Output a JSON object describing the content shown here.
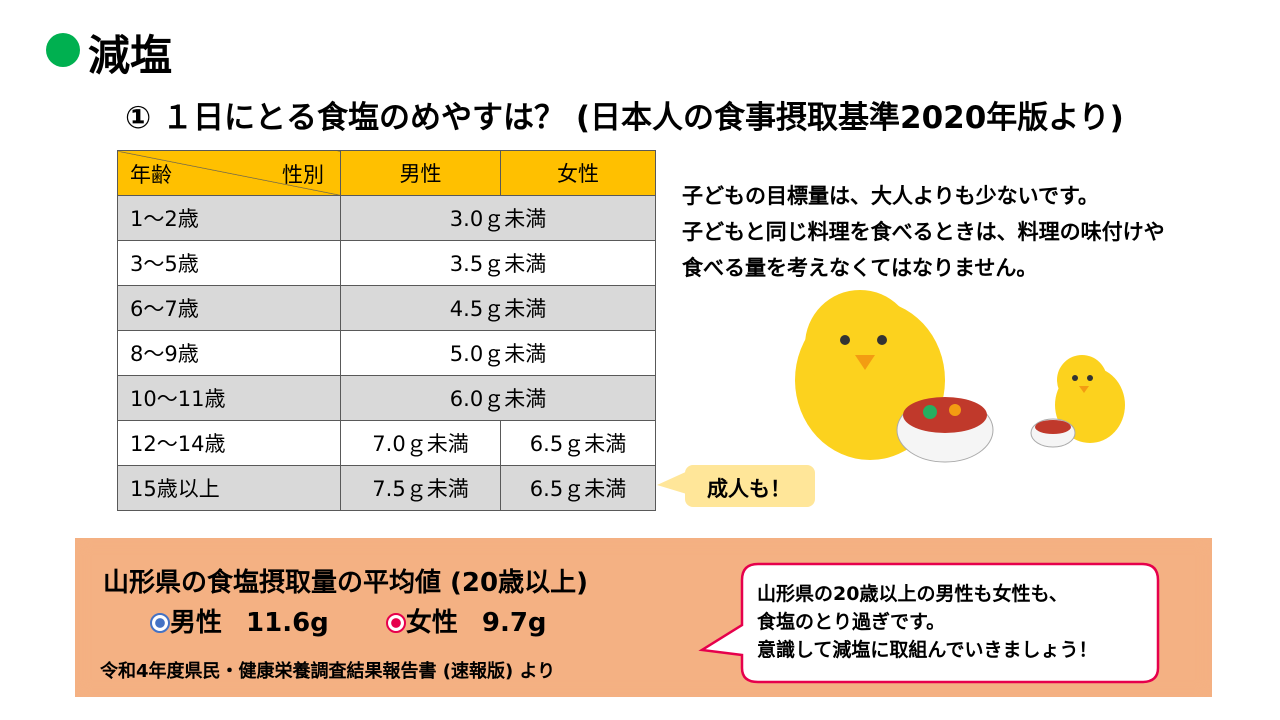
{
  "title": "減塩",
  "subtitle": "① １日にとる食塩のめやすは？ (日本人の食事摂取基準2020年版より)",
  "table": {
    "corner_left": "年齢",
    "corner_right": "性別",
    "male": "男性",
    "female": "女性",
    "rows": [
      {
        "age": "1～2歳",
        "both": "3.0ｇ未満"
      },
      {
        "age": "3～5歳",
        "both": "3.5ｇ未満"
      },
      {
        "age": "6～7歳",
        "both": "4.5ｇ未満"
      },
      {
        "age": "8～9歳",
        "both": "5.0ｇ未満"
      },
      {
        "age": "10～11歳",
        "both": "6.0ｇ未満"
      },
      {
        "age": "12～14歳",
        "male": "7.0ｇ未満",
        "female": "6.5ｇ未満"
      },
      {
        "age": "15歳以上",
        "male": "7.5ｇ未満",
        "female": "6.5ｇ未満"
      }
    ]
  },
  "note": [
    "子どもの目標量は、大人よりも少ないです。",
    "子どもと同じ料理を食べるときは、料理の味付けや",
    "食べる量を考えなくてはなりません。"
  ],
  "adult_bubble": "成人も！",
  "yamagata": {
    "heading": "山形県の食塩摂取量の平均値 (20歳以上)",
    "male_label": "男性",
    "male_value": "11.6g",
    "female_label": "女性",
    "female_value": "9.7g",
    "source": "令和4年度県民・健康栄養調査結果報告書 (速報版) より"
  },
  "callout": [
    "山形県の20歳以上の男性も女性も、",
    "食塩のとり過ぎです。",
    "意識して減塩に取組んでいきましょう！"
  ]
}
